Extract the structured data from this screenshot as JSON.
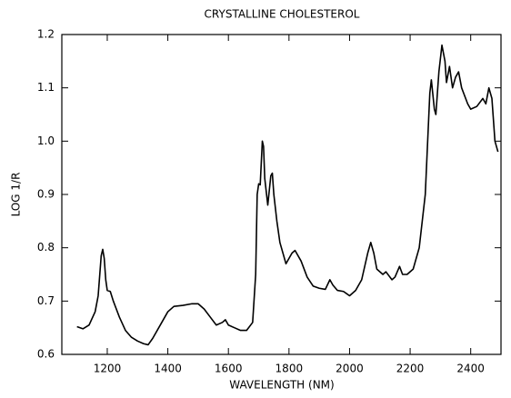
{
  "chart_data": {
    "type": "line",
    "title": "CRYSTALLINE CHOLESTEROL",
    "x_label": "WAVELENGTH (NM)",
    "y_label": "LOG 1/R",
    "xlim": [
      1050,
      2500
    ],
    "ylim": [
      0.6,
      1.2
    ],
    "xticks": [
      1200,
      1400,
      1600,
      1800,
      2000,
      2200,
      2400
    ],
    "yticks": [
      0.6,
      0.7,
      0.8,
      0.9,
      {
        "value": 1,
        "label": "1.0"
      },
      1.1,
      1.2
    ],
    "series": [
      {
        "color": "#000000",
        "x": [
          1100,
          1120,
          1140,
          1160,
          1170,
          1180,
          1185,
          1190,
          1195,
          1200,
          1210,
          1220,
          1240,
          1260,
          1280,
          1300,
          1320,
          1335,
          1350,
          1380,
          1400,
          1420,
          1450,
          1480,
          1500,
          1520,
          1540,
          1560,
          1580,
          1590,
          1600,
          1620,
          1640,
          1660,
          1680,
          1690,
          1695,
          1700,
          1705,
          1712,
          1716,
          1720,
          1730,
          1740,
          1745,
          1750,
          1760,
          1770,
          1790,
          1810,
          1820,
          1840,
          1860,
          1880,
          1900,
          1920,
          1935,
          1945,
          1960,
          1980,
          2000,
          2020,
          2040,
          2060,
          2070,
          2080,
          2090,
          2110,
          2120,
          2140,
          2150,
          2165,
          2175,
          2190,
          2210,
          2230,
          2250,
          2265,
          2270,
          2280,
          2285,
          2295,
          2305,
          2315,
          2320,
          2330,
          2340,
          2350,
          2360,
          2370,
          2390,
          2400,
          2420,
          2440,
          2450,
          2460,
          2470,
          2480,
          2490
        ],
        "values": [
          0.652,
          0.648,
          0.655,
          0.68,
          0.71,
          0.785,
          0.797,
          0.78,
          0.74,
          0.72,
          0.718,
          0.7,
          0.67,
          0.645,
          0.632,
          0.625,
          0.62,
          0.618,
          0.63,
          0.66,
          0.68,
          0.69,
          0.692,
          0.695,
          0.695,
          0.685,
          0.67,
          0.655,
          0.66,
          0.665,
          0.655,
          0.65,
          0.645,
          0.645,
          0.66,
          0.75,
          0.9,
          0.92,
          0.918,
          1.0,
          0.99,
          0.93,
          0.88,
          0.935,
          0.94,
          0.9,
          0.85,
          0.81,
          0.77,
          0.79,
          0.795,
          0.775,
          0.745,
          0.728,
          0.724,
          0.722,
          0.74,
          0.73,
          0.72,
          0.718,
          0.71,
          0.72,
          0.74,
          0.79,
          0.81,
          0.79,
          0.76,
          0.75,
          0.755,
          0.74,
          0.745,
          0.765,
          0.75,
          0.75,
          0.76,
          0.8,
          0.9,
          1.09,
          1.115,
          1.06,
          1.05,
          1.13,
          1.18,
          1.15,
          1.11,
          1.14,
          1.1,
          1.12,
          1.13,
          1.1,
          1.07,
          1.06,
          1.065,
          1.08,
          1.07,
          1.1,
          1.08,
          1.0,
          0.98
        ]
      }
    ]
  }
}
